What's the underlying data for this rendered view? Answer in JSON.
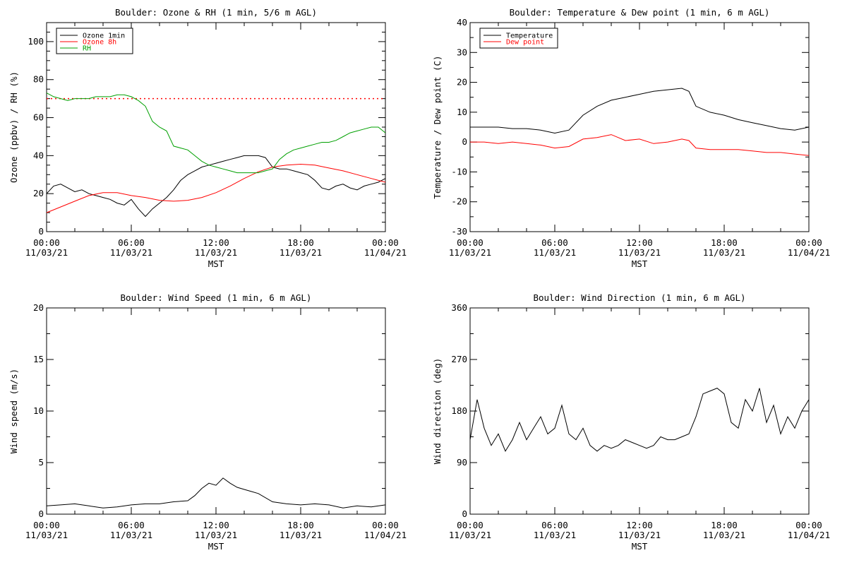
{
  "chart_data": [
    {
      "type": "line",
      "title": "Boulder: Ozone & RH (1 min, 5/6 m AGL)",
      "xlabel": "MST",
      "ylabel": "Ozone (ppbv) / RH (%)",
      "xlim": [
        0,
        24
      ],
      "ylim": [
        0,
        110
      ],
      "yticks": [
        0,
        20,
        40,
        60,
        80,
        100
      ],
      "xticks": [
        "00:00\n11/03/21",
        "06:00\n11/03/21",
        "12:00\n11/03/21",
        "18:00\n11/03/21",
        "00:00\n11/04/21"
      ],
      "grid": false,
      "legend": "top-left",
      "reference_line": {
        "y": 70,
        "style": "dotted",
        "color": "#ff0000"
      },
      "series": [
        {
          "name": "Ozone 1min",
          "color": "#000000",
          "x": [
            0,
            0.5,
            1,
            1.5,
            2,
            2.5,
            3,
            3.5,
            4,
            4.5,
            5,
            5.5,
            6,
            6.5,
            7,
            7.5,
            8,
            8.5,
            9,
            9.5,
            10,
            10.5,
            11,
            11.5,
            12,
            12.5,
            13,
            13.5,
            14,
            14.5,
            15,
            15.5,
            16,
            16.5,
            17,
            17.5,
            18,
            18.5,
            19,
            19.5,
            20,
            20.5,
            21,
            21.5,
            22,
            22.5,
            23,
            23.5,
            24
          ],
          "y": [
            20,
            24,
            25,
            23,
            21,
            22,
            20,
            19,
            18,
            17,
            15,
            14,
            17,
            12,
            8,
            12,
            15,
            18,
            22,
            27,
            30,
            32,
            34,
            35,
            36,
            37,
            38,
            39,
            40,
            40,
            40,
            39,
            34,
            33,
            33,
            32,
            31,
            30,
            27,
            23,
            22,
            24,
            25,
            23,
            22,
            24,
            25,
            26,
            28
          ]
        },
        {
          "name": "Ozone 8h",
          "color": "#ff0000",
          "x": [
            0,
            1,
            2,
            3,
            4,
            5,
            6,
            7,
            8,
            9,
            10,
            11,
            12,
            13,
            14,
            15,
            16,
            17,
            18,
            19,
            20,
            21,
            22,
            23,
            24
          ],
          "y": [
            10,
            13,
            16,
            19,
            20.5,
            20.5,
            19,
            18,
            16.5,
            16,
            16.5,
            18,
            20.5,
            24,
            28,
            31.5,
            34,
            35,
            35.5,
            35,
            33.5,
            32,
            30,
            28,
            26
          ]
        },
        {
          "name": "RH",
          "color": "#00a000",
          "x": [
            0,
            0.5,
            1,
            1.5,
            2,
            2.5,
            3,
            3.5,
            4,
            4.5,
            5,
            5.5,
            6,
            6.5,
            7,
            7.5,
            8,
            8.5,
            9,
            9.5,
            10,
            10.5,
            11,
            11.5,
            12,
            12.5,
            13,
            13.5,
            14,
            14.5,
            15,
            15.5,
            16,
            16.5,
            17,
            17.5,
            18,
            18.5,
            19,
            19.5,
            20,
            20.5,
            21,
            21.5,
            22,
            22.5,
            23,
            23.5,
            24
          ],
          "y": [
            73,
            71,
            70,
            69,
            70,
            70,
            70,
            71,
            71,
            71,
            72,
            72,
            71,
            69,
            66,
            58,
            55,
            53,
            45,
            44,
            43,
            40,
            37,
            35,
            34,
            33,
            32,
            31,
            31,
            31,
            31,
            32,
            33,
            38,
            41,
            43,
            44,
            45,
            46,
            47,
            47,
            48,
            50,
            52,
            53,
            54,
            55,
            55,
            52
          ]
        }
      ]
    },
    {
      "type": "line",
      "title": "Boulder: Temperature & Dew point (1 min, 6 m AGL)",
      "xlabel": "MST",
      "ylabel": "Temperature / Dew point (C)",
      "xlim": [
        0,
        24
      ],
      "ylim": [
        -30,
        40
      ],
      "yticks": [
        -30,
        -20,
        -10,
        0,
        10,
        20,
        30,
        40
      ],
      "xticks": [
        "00:00\n11/03/21",
        "06:00\n11/03/21",
        "12:00\n11/03/21",
        "18:00\n11/03/21",
        "00:00\n11/04/21"
      ],
      "grid": false,
      "legend": "top-left",
      "series": [
        {
          "name": "Temperature",
          "color": "#000000",
          "x": [
            0,
            1,
            2,
            3,
            4,
            5,
            6,
            7,
            8,
            9,
            10,
            11,
            12,
            13,
            14,
            15,
            15.5,
            16,
            17,
            18,
            19,
            20,
            21,
            22,
            23,
            24
          ],
          "y": [
            5,
            5,
            5,
            4.5,
            4.5,
            4,
            3,
            4,
            9,
            12,
            14,
            15,
            16,
            17,
            17.5,
            18,
            17,
            12,
            10,
            9,
            7.5,
            6.5,
            5.5,
            4.5,
            4,
            5
          ]
        },
        {
          "name": "Dew point",
          "color": "#ff0000",
          "x": [
            0,
            1,
            2,
            3,
            4,
            5,
            6,
            7,
            8,
            9,
            10,
            11,
            12,
            13,
            14,
            15,
            15.5,
            16,
            17,
            18,
            19,
            20,
            21,
            22,
            23,
            24
          ],
          "y": [
            0,
            0,
            -0.5,
            0,
            -0.5,
            -1,
            -2,
            -1.5,
            1,
            1.5,
            2.5,
            0.5,
            1,
            -0.5,
            0,
            1,
            0.5,
            -2,
            -2.5,
            -2.5,
            -2.5,
            -3,
            -3.5,
            -3.5,
            -4,
            -4.5
          ]
        }
      ]
    },
    {
      "type": "line",
      "title": "Boulder: Wind Speed (1 min, 6 m AGL)",
      "xlabel": "MST",
      "ylabel": "Wind speed (m/s)",
      "xlim": [
        0,
        24
      ],
      "ylim": [
        0,
        20
      ],
      "yticks": [
        0,
        5,
        10,
        15,
        20
      ],
      "xticks": [
        "00:00\n11/03/21",
        "06:00\n11/03/21",
        "12:00\n11/03/21",
        "18:00\n11/03/21",
        "00:00\n11/04/21"
      ],
      "grid": false,
      "series": [
        {
          "color": "#000000",
          "x": [
            0,
            1,
            2,
            3,
            4,
            5,
            6,
            7,
            8,
            9,
            10,
            10.5,
            11,
            11.5,
            12,
            12.5,
            13,
            13.5,
            14,
            14.5,
            15,
            16,
            17,
            18,
            19,
            20,
            21,
            22,
            23,
            24
          ],
          "y": [
            0.8,
            0.9,
            1.0,
            0.8,
            0.6,
            0.7,
            0.9,
            1.0,
            1.0,
            1.2,
            1.3,
            1.8,
            2.5,
            3.0,
            2.8,
            3.5,
            3.0,
            2.6,
            2.4,
            2.2,
            2.0,
            1.2,
            1.0,
            0.9,
            1.0,
            0.9,
            0.6,
            0.8,
            0.7,
            0.9
          ]
        }
      ]
    },
    {
      "type": "line",
      "title": "Boulder: Wind Direction (1 min, 6 m AGL)",
      "xlabel": "MST",
      "ylabel": "Wind direction (deg)",
      "xlim": [
        0,
        24
      ],
      "ylim": [
        0,
        360
      ],
      "yticks": [
        0,
        90,
        180,
        270,
        360
      ],
      "xticks": [
        "00:00\n11/03/21",
        "06:00\n11/03/21",
        "12:00\n11/03/21",
        "18:00\n11/03/21",
        "00:00\n11/04/21"
      ],
      "grid": false,
      "series": [
        {
          "color": "#000000",
          "x": [
            0,
            0.5,
            1,
            1.5,
            2,
            2.5,
            3,
            3.5,
            4,
            4.5,
            5,
            5.5,
            6,
            6.5,
            7,
            7.5,
            8,
            8.5,
            9,
            9.5,
            10,
            10.5,
            11,
            11.5,
            12,
            12.5,
            13,
            13.5,
            14,
            14.5,
            15,
            15.5,
            16,
            16.5,
            17,
            17.5,
            18,
            18.5,
            19,
            19.5,
            20,
            20.5,
            21,
            21.5,
            22,
            22.5,
            23,
            23.5,
            24
          ],
          "y": [
            130,
            200,
            150,
            120,
            140,
            110,
            130,
            160,
            130,
            150,
            170,
            140,
            150,
            190,
            140,
            130,
            150,
            120,
            110,
            120,
            115,
            120,
            130,
            125,
            120,
            115,
            120,
            135,
            130,
            130,
            135,
            140,
            170,
            210,
            215,
            220,
            210,
            160,
            150,
            200,
            180,
            220,
            160,
            190,
            140,
            170,
            150,
            180,
            200
          ]
        }
      ]
    }
  ]
}
